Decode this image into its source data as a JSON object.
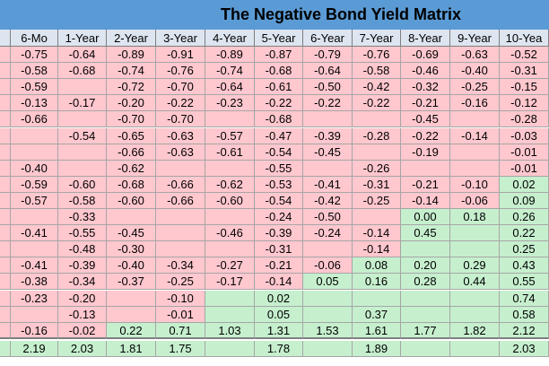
{
  "title": "The Negative Bond Yield Matrix",
  "columns": [
    "6-Mo",
    "1-Year",
    "2-Year",
    "3-Year",
    "4-Year",
    "5-Year",
    "6-Year",
    "7-Year",
    "8-Year",
    "9-Year",
    "10-Yea"
  ],
  "rows": [
    [
      "-0.75",
      "-0.64",
      "-0.89",
      "-0.91",
      "-0.89",
      "-0.87",
      "-0.79",
      "-0.76",
      "-0.69",
      "-0.63",
      "-0.52"
    ],
    [
      "-0.58",
      "-0.68",
      "-0.74",
      "-0.76",
      "-0.74",
      "-0.68",
      "-0.64",
      "-0.58",
      "-0.46",
      "-0.40",
      "-0.31"
    ],
    [
      "-0.59",
      "",
      "-0.72",
      "-0.70",
      "-0.64",
      "-0.61",
      "-0.50",
      "-0.42",
      "-0.32",
      "-0.25",
      "-0.15"
    ],
    [
      "-0.13",
      "-0.17",
      "-0.20",
      "-0.22",
      "-0.23",
      "-0.22",
      "-0.22",
      "-0.22",
      "-0.21",
      "-0.16",
      "-0.12"
    ],
    [
      "-0.66",
      "",
      "-0.70",
      "-0.70",
      "",
      "-0.68",
      "",
      "",
      "-0.45",
      "",
      "-0.28"
    ],
    [
      "",
      "-0.54",
      "-0.65",
      "-0.63",
      "-0.57",
      "-0.47",
      "-0.39",
      "-0.28",
      "-0.22",
      "-0.14",
      "-0.03"
    ],
    [
      "",
      "",
      "-0.66",
      "-0.63",
      "-0.61",
      "-0.54",
      "-0.45",
      "",
      "-0.19",
      "",
      "-0.01"
    ],
    [
      "-0.40",
      "",
      "-0.62",
      "",
      "",
      "-0.55",
      "",
      "-0.26",
      "",
      "",
      "-0.01"
    ],
    [
      "-0.59",
      "-0.60",
      "-0.68",
      "-0.66",
      "-0.62",
      "-0.53",
      "-0.41",
      "-0.31",
      "-0.21",
      "-0.10",
      "0.02"
    ],
    [
      "-0.57",
      "-0.58",
      "-0.60",
      "-0.66",
      "-0.60",
      "-0.54",
      "-0.42",
      "-0.25",
      "-0.14",
      "-0.06",
      "0.09"
    ],
    [
      "",
      "-0.33",
      "",
      "",
      "",
      "-0.24",
      "-0.50",
      "",
      "0.00",
      "0.18",
      "0.26"
    ],
    [
      "-0.41",
      "-0.55",
      "-0.45",
      "",
      "-0.46",
      "-0.39",
      "-0.24",
      "-0.14",
      "0.45",
      "",
      "0.22"
    ],
    [
      "",
      "-0.48",
      "-0.30",
      "",
      "",
      "-0.31",
      "",
      "-0.14",
      "",
      "",
      "0.25"
    ],
    [
      "-0.41",
      "-0.39",
      "-0.40",
      "-0.34",
      "-0.27",
      "-0.21",
      "-0.06",
      "0.08",
      "0.20",
      "0.29",
      "0.43"
    ],
    [
      "-0.38",
      "-0.34",
      "-0.37",
      "-0.25",
      "-0.17",
      "-0.14",
      "0.05",
      "0.16",
      "0.28",
      "0.44",
      "0.55"
    ],
    [
      "-0.23",
      "-0.20",
      "",
      "-0.10",
      "",
      "0.02",
      "",
      "",
      "",
      "",
      "0.74"
    ],
    [
      "",
      "-0.13",
      "",
      "-0.01",
      "",
      "0.05",
      "",
      "0.37",
      "",
      "",
      "0.58"
    ],
    [
      "-0.16",
      "-0.02",
      "0.22",
      "0.71",
      "1.03",
      "1.31",
      "1.53",
      "1.61",
      "1.77",
      "1.82",
      "2.12"
    ],
    [
      "2.19",
      "2.03",
      "1.81",
      "1.75",
      "",
      "1.78",
      "",
      "1.89",
      "",
      "",
      "2.03"
    ]
  ],
  "fill_colors": {
    "header": "#dde5f0",
    "negative": "#ffc7ce",
    "positive": "#c6efce",
    "title_band": "#5b9bd5"
  },
  "empty_cell_sign": [
    [],
    [],
    [
      "n",
      "n",
      "n",
      "n",
      "n",
      "n",
      "n",
      "n",
      "n",
      "n",
      "n"
    ],
    [],
    [
      "n",
      "n",
      "n",
      "n",
      "n",
      "n",
      "n",
      "n",
      "n",
      "n",
      "n"
    ],
    [
      "n",
      "n",
      "n",
      "n",
      "n",
      "n",
      "n",
      "n",
      "n",
      "n",
      "n"
    ],
    [
      "n",
      "n",
      "n",
      "n",
      "n",
      "n",
      "n",
      "n",
      "n",
      "n",
      "n"
    ],
    [
      "n",
      "n",
      "n",
      "n",
      "n",
      "n",
      "n",
      "n",
      "n",
      "n",
      "n"
    ],
    [],
    [],
    [
      "n",
      "n",
      "n",
      "n",
      "n",
      "n",
      "n",
      "n",
      "p",
      "p",
      "p"
    ],
    [
      "n",
      "n",
      "n",
      "n",
      "n",
      "n",
      "n",
      "n",
      "p",
      "p",
      "p"
    ],
    [
      "n",
      "n",
      "n",
      "n",
      "n",
      "n",
      "n",
      "n",
      "p",
      "p",
      "p"
    ],
    [],
    [],
    [
      "n",
      "n",
      "n",
      "n",
      "p",
      "p",
      "p",
      "p",
      "p",
      "p",
      "p"
    ],
    [
      "n",
      "n",
      "n",
      "n",
      "p",
      "p",
      "p",
      "p",
      "p",
      "p",
      "p"
    ],
    [],
    [
      "p",
      "p",
      "p",
      "p",
      "p",
      "p",
      "p",
      "p",
      "p",
      "p",
      "p"
    ]
  ]
}
